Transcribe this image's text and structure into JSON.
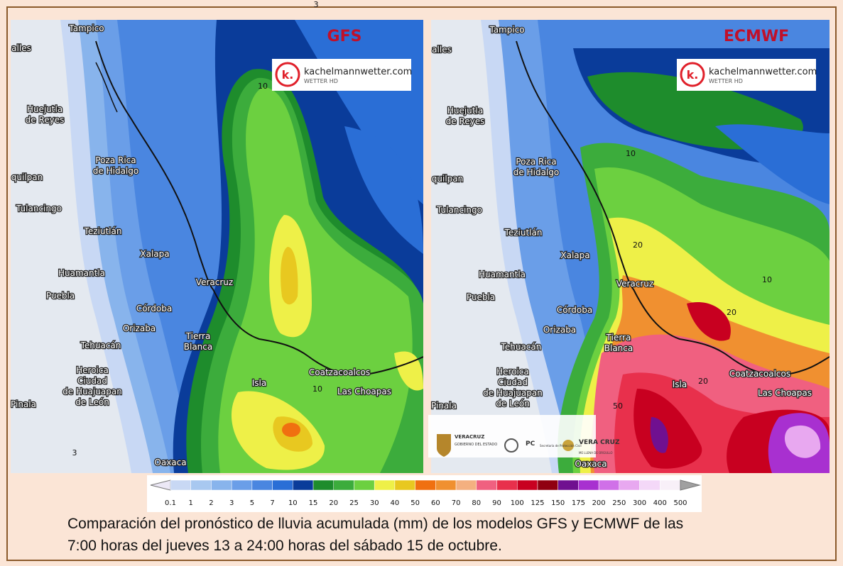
{
  "panels": [
    {
      "title": "GFS",
      "contour_labels": [
        "3",
        "10",
        "10",
        "3"
      ]
    },
    {
      "title": "ECMWF",
      "contour_labels": [
        "10",
        "20",
        "10",
        "20",
        "20",
        "50"
      ]
    }
  ],
  "logo": {
    "name": "kachelmannwetter.com",
    "sub": "WETTER HD",
    "mark": "k."
  },
  "cities": [
    {
      "lines": [
        "Tampico"
      ]
    },
    {
      "lines": [
        "alles"
      ]
    },
    {
      "lines": [
        "Huejutla",
        "de Reyes"
      ]
    },
    {
      "lines": [
        "Poza Rica",
        "de Hidalgo"
      ]
    },
    {
      "lines": [
        "quilpan"
      ]
    },
    {
      "lines": [
        "Tulancingo"
      ]
    },
    {
      "lines": [
        "Teziutlán"
      ]
    },
    {
      "lines": [
        "Xalapa"
      ]
    },
    {
      "lines": [
        "Huamantla"
      ]
    },
    {
      "lines": [
        "Veracruz"
      ]
    },
    {
      "lines": [
        "Puebla"
      ]
    },
    {
      "lines": [
        "Córdoba"
      ]
    },
    {
      "lines": [
        "Orizaba"
      ]
    },
    {
      "lines": [
        "Tierra",
        "Blanca"
      ]
    },
    {
      "lines": [
        "Tehuacán"
      ]
    },
    {
      "lines": [
        "Heroica",
        "Ciudad",
        "de Huajuapan",
        "de León"
      ]
    },
    {
      "lines": [
        "Isla"
      ]
    },
    {
      "lines": [
        "Coatzacoalcos"
      ]
    },
    {
      "lines": [
        "Las Choapas"
      ]
    },
    {
      "lines": [
        "Pinala"
      ]
    },
    {
      "lines": [
        "Oaxaca"
      ]
    }
  ],
  "sponsors": [
    "VERACRUZ",
    "GOBIERNO DEL ESTADO",
    "PC",
    "Secretaría de Protección Civil",
    "VERA CRUZ",
    "ME LLENA DE ORGULLO"
  ],
  "legend": {
    "labels": [
      0.1,
      1,
      2,
      3,
      5,
      7,
      10,
      15,
      20,
      25,
      30,
      40,
      50,
      60,
      70,
      80,
      90,
      100,
      125,
      150,
      175,
      200,
      250,
      300,
      400,
      500
    ],
    "colors": [
      "#ece8f6",
      "#c8d8f4",
      "#a8c8f0",
      "#88b4ec",
      "#6a9ee8",
      "#4a86e0",
      "#2a6ed6",
      "#0a3c9a",
      "#1e8c2c",
      "#3cac3c",
      "#6cd040",
      "#eef048",
      "#e8c820",
      "#f07010",
      "#f09030",
      "#f4b080",
      "#f06080",
      "#e8304c",
      "#c80020",
      "#900010",
      "#701090",
      "#a830d0",
      "#d070e8",
      "#e8a8f0",
      "#f4d8f8",
      "#f8f0f8",
      "#a0a0a0"
    ]
  },
  "caption": [
    "Comparación del pronóstico de lluvia acumulada (mm) de los modelos GFS y ECMWF de las",
    "7:00 horas del jueves 13 a 24:00 horas del sábado 15 de octubre."
  ]
}
